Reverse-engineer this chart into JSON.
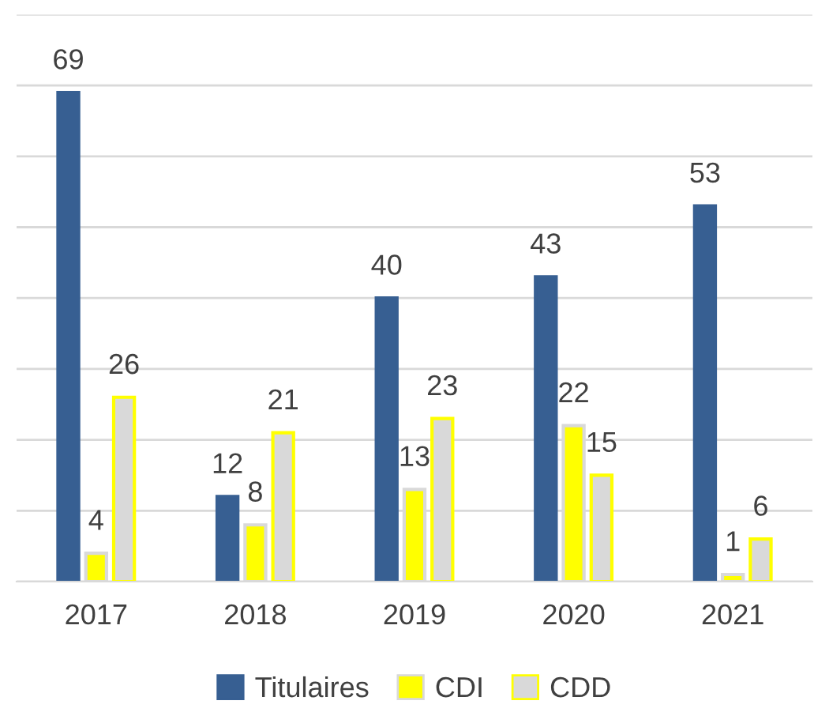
{
  "chart_data": {
    "type": "bar",
    "categories": [
      "2017",
      "2018",
      "2019",
      "2020",
      "2021"
    ],
    "series": [
      {
        "name": "Titulaires",
        "color": "#375f92",
        "values": [
          69,
          12,
          40,
          43,
          53
        ]
      },
      {
        "name": "CDI",
        "color": "#ffff00",
        "values": [
          4,
          8,
          13,
          22,
          1
        ]
      },
      {
        "name": "CDD",
        "color": "#d9d9d9",
        "values": [
          26,
          21,
          23,
          15,
          6
        ]
      }
    ],
    "ylim": [
      0,
      80
    ],
    "yticks": [
      {
        "value": 0,
        "label": null
      },
      {
        "value": 10,
        "label": null
      },
      {
        "value": 20,
        "label": null
      },
      {
        "value": 30,
        "label": null
      },
      {
        "value": 40,
        "label": null
      },
      {
        "value": 50,
        "label": null
      },
      {
        "value": 60,
        "label": null
      },
      {
        "value": 70,
        "label": null
      },
      {
        "value": 80,
        "label": null
      }
    ],
    "grid": "y",
    "data_labels": true,
    "legend": "bottom"
  }
}
